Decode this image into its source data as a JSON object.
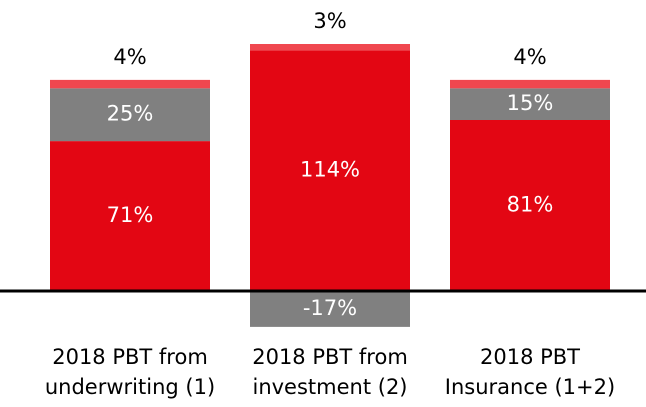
{
  "chart_data": {
    "type": "bar",
    "stacked": true,
    "categories": [
      [
        "2018 PBT from",
        "underwriting (1)"
      ],
      [
        "2018 PBT from",
        "investment (2)"
      ],
      [
        "2018 PBT",
        "Insurance  (1+2)"
      ]
    ],
    "series": [
      {
        "color": "#e30613",
        "label_color": "#ffffff",
        "values": [
          71,
          114,
          81
        ],
        "value_labels": [
          "71%",
          "114%",
          "81%"
        ]
      },
      {
        "color": "#808080",
        "label_color": "#ffffff",
        "values": [
          25,
          -17,
          15
        ],
        "value_labels": [
          "25%",
          "-17%",
          "15%"
        ]
      },
      {
        "color": "#f0474f",
        "label_color": "#000000",
        "label_position": "above",
        "values": [
          4,
          3,
          4
        ],
        "value_labels": [
          "4%",
          "3%",
          "4%"
        ]
      }
    ]
  }
}
